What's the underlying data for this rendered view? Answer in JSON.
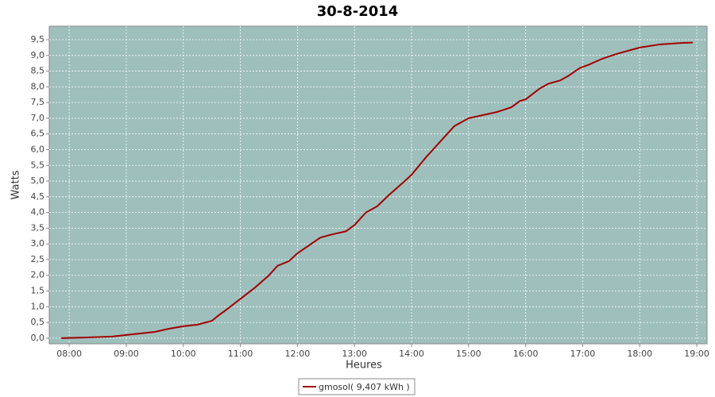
{
  "chart_data": {
    "type": "line",
    "title": "30-8-2014",
    "x_label": "Heures",
    "y_label": "Watts",
    "x": [
      7.86,
      8.25,
      8.75,
      9.0,
      9.5,
      9.75,
      10.0,
      10.25,
      10.5,
      10.6,
      10.75,
      11.0,
      11.25,
      11.5,
      11.65,
      11.85,
      12.0,
      12.2,
      12.4,
      12.6,
      12.85,
      13.0,
      13.2,
      13.4,
      13.6,
      13.85,
      14.0,
      14.25,
      14.5,
      14.75,
      14.85,
      15.0,
      15.25,
      15.5,
      15.75,
      15.9,
      16.0,
      16.25,
      16.4,
      16.6,
      16.75,
      16.95,
      17.1,
      17.35,
      17.6,
      18.0,
      18.35,
      18.75,
      18.93
    ],
    "series": [
      {
        "name": "gmosol( 9,407 kWh )",
        "color": "#a00000",
        "values": [
          0,
          0.02,
          0.05,
          0.1,
          0.2,
          0.3,
          0.38,
          0.43,
          0.55,
          0.7,
          0.9,
          1.25,
          1.6,
          2.0,
          2.3,
          2.45,
          2.7,
          2.95,
          3.2,
          3.3,
          3.4,
          3.6,
          4.0,
          4.2,
          4.55,
          4.95,
          5.2,
          5.75,
          6.25,
          6.75,
          6.85,
          7.0,
          7.1,
          7.2,
          7.35,
          7.55,
          7.6,
          7.95,
          8.1,
          8.2,
          8.35,
          8.6,
          8.7,
          8.9,
          9.05,
          9.25,
          9.35,
          9.4,
          9.41
        ]
      }
    ],
    "xlim": [
      7.65,
      19.18
    ],
    "xticks": [
      {
        "value": 8,
        "label": "08:00"
      },
      {
        "value": 9,
        "label": "09:00"
      },
      {
        "value": 10,
        "label": "10:00"
      },
      {
        "value": 11,
        "label": "11:00"
      },
      {
        "value": 12,
        "label": "12:00"
      },
      {
        "value": 13,
        "label": "13:00"
      },
      {
        "value": 14,
        "label": "14:00"
      },
      {
        "value": 15,
        "label": "15:00"
      },
      {
        "value": 16,
        "label": "16:00"
      },
      {
        "value": 17,
        "label": "17:00"
      },
      {
        "value": 18,
        "label": "18:00"
      },
      {
        "value": 19,
        "label": "19:00"
      }
    ],
    "ylim": [
      -0.18,
      9.93
    ],
    "yticks": [
      {
        "value": 0,
        "label": "0,0"
      },
      {
        "value": 0.5,
        "label": "0,5"
      },
      {
        "value": 1,
        "label": "1,0"
      },
      {
        "value": 1.5,
        "label": "1,5"
      },
      {
        "value": 2,
        "label": "2,0"
      },
      {
        "value": 2.5,
        "label": "2,5"
      },
      {
        "value": 3,
        "label": "3,0"
      },
      {
        "value": 3.5,
        "label": "3,5"
      },
      {
        "value": 4,
        "label": "4,0"
      },
      {
        "value": 4.5,
        "label": "4,5"
      },
      {
        "value": 5,
        "label": "5,0"
      },
      {
        "value": 5.5,
        "label": "5,5"
      },
      {
        "value": 6,
        "label": "6,0"
      },
      {
        "value": 6.5,
        "label": "6,5"
      },
      {
        "value": 7,
        "label": "7,0"
      },
      {
        "value": 7.5,
        "label": "7,5"
      },
      {
        "value": 8,
        "label": "8,0"
      },
      {
        "value": 8.5,
        "label": "8,5"
      },
      {
        "value": 9,
        "label": "9,0"
      },
      {
        "value": 9.5,
        "label": "9,5"
      }
    ],
    "grid": true,
    "plot_background": "#9ebfbc"
  }
}
